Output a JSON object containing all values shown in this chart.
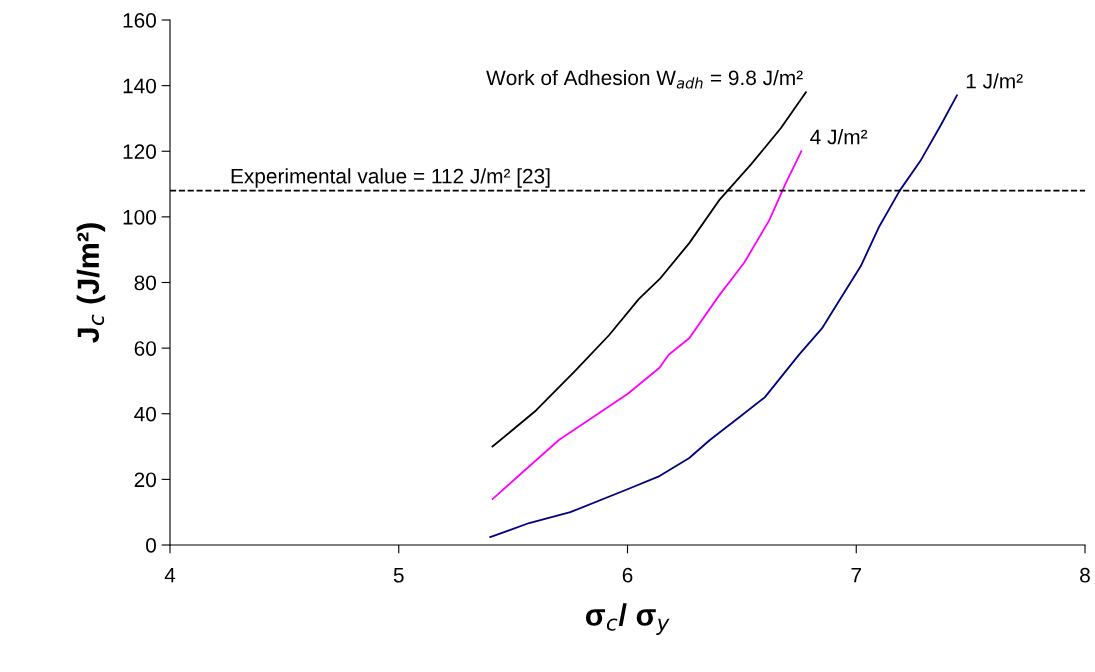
{
  "chart_data": {
    "type": "line",
    "xlabel": "σ$_{c}$/ σ$_{y}$",
    "ylabel": "J$_{c}$ (J/m²)",
    "xlim": [
      4,
      8
    ],
    "xticks": [
      4,
      5,
      6,
      7,
      8
    ],
    "ylim": [
      0,
      160
    ],
    "yticks": [
      0,
      20,
      40,
      60,
      80,
      100,
      120,
      140,
      160
    ],
    "grid": false,
    "legend": false,
    "marker": "none",
    "line_style": "solid",
    "ref_lines": [
      {
        "axis": "y",
        "value": 108,
        "color": "#000000",
        "line_style": "dashed"
      }
    ],
    "annotations": [
      "Experimental value = 112 J/m² [23]"
    ],
    "series": [
      {
        "name": "Work of Adhesion W$_{adh}$ = 9.8 J/m²",
        "color": "#000000",
        "x": [
          5.41,
          5.6,
          5.77,
          5.92,
          6.05,
          6.14,
          6.27,
          6.4,
          6.54,
          6.67,
          6.78
        ],
        "values": [
          30,
          41,
          53,
          64,
          75,
          81,
          92,
          105,
          116,
          127,
          138
        ]
      },
      {
        "name": "4 J/m²",
        "color": "#ff00ff",
        "x": [
          5.41,
          5.7,
          6.0,
          6.14,
          6.18,
          6.27,
          6.4,
          6.51,
          6.62,
          6.69,
          6.76
        ],
        "values": [
          14,
          32,
          46,
          54,
          58,
          63,
          76,
          86,
          99,
          110,
          120
        ]
      },
      {
        "name": "1 J/m²",
        "color": "#000080",
        "x": [
          5.4,
          5.57,
          5.75,
          6.0,
          6.14,
          6.27,
          6.36,
          6.49,
          6.6,
          6.75,
          6.85,
          6.93,
          7.02,
          7.1,
          7.19,
          7.28,
          7.37,
          7.44
        ],
        "values": [
          2.4,
          6.7,
          10,
          17,
          21,
          26.5,
          32,
          39,
          45,
          58,
          66,
          75,
          85,
          97,
          108,
          117,
          128,
          137
        ]
      }
    ]
  }
}
